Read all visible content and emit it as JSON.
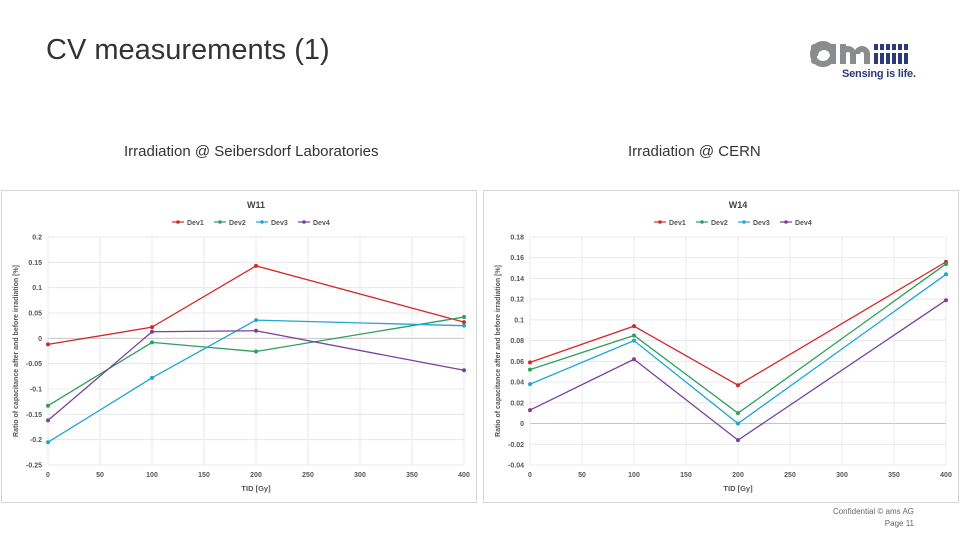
{
  "slide": {
    "title": "CV measurements (1)",
    "left_subtitle": "Irradiation @ Seibersdorf Laboratories",
    "right_subtitle": "Irradiation @ CERN",
    "footer_line1": "Confidential © ams AG",
    "footer_line2": "Page 11"
  },
  "logo": {
    "text": "Sensing is life.",
    "colors": {
      "gray": "#8a8c8e",
      "blue": "#2a3a7a"
    }
  },
  "chart_data": [
    {
      "type": "line",
      "title": "W11",
      "xlabel": "TID [Gy]",
      "ylabel": "Ratio of capacitance after and before irradiation [%]",
      "x": [
        0,
        100,
        200,
        400
      ],
      "xlim": [
        0,
        400
      ],
      "xticks": [
        0,
        50,
        100,
        150,
        200,
        250,
        300,
        350,
        400
      ],
      "ylim": [
        -0.25,
        0.2
      ],
      "yticks": [
        -0.25,
        -0.2,
        -0.15,
        -0.1,
        -0.05,
        0,
        0.05,
        0.1,
        0.15,
        0.2
      ],
      "grid": true,
      "legend": "top",
      "series": [
        {
          "name": "Dev1",
          "color": "#d62728",
          "values": [
            -0.012,
            0.022,
            0.143,
            0.032
          ]
        },
        {
          "name": "Dev2",
          "color": "#2ca05a",
          "values": [
            -0.133,
            -0.008,
            -0.026,
            0.042
          ]
        },
        {
          "name": "Dev3",
          "color": "#1fa6d6",
          "values": [
            -0.205,
            -0.078,
            0.036,
            0.025
          ]
        },
        {
          "name": "Dev4",
          "color": "#7b3f9e",
          "values": [
            -0.162,
            0.013,
            0.015,
            -0.063
          ]
        }
      ]
    },
    {
      "type": "line",
      "title": "W14",
      "xlabel": "TID [Gy]",
      "ylabel": "Ratio of capacitance after and before irradiation [%]",
      "x": [
        0,
        100,
        200,
        400
      ],
      "xlim": [
        0,
        400
      ],
      "xticks": [
        0,
        50,
        100,
        150,
        200,
        250,
        300,
        350,
        400
      ],
      "ylim": [
        -0.04,
        0.18
      ],
      "yticks": [
        -0.04,
        -0.02,
        0,
        0.02,
        0.04,
        0.06,
        0.08,
        0.1,
        0.12,
        0.14,
        0.16,
        0.18
      ],
      "grid": true,
      "legend": "top",
      "series": [
        {
          "name": "Dev1",
          "color": "#d62728",
          "values": [
            0.059,
            0.094,
            0.037,
            0.156
          ]
        },
        {
          "name": "Dev2",
          "color": "#2ca05a",
          "values": [
            0.052,
            0.085,
            0.01,
            0.154
          ]
        },
        {
          "name": "Dev3",
          "color": "#1fa6d6",
          "values": [
            0.038,
            0.08,
            0.0,
            0.144
          ]
        },
        {
          "name": "Dev4",
          "color": "#7b3f9e",
          "values": [
            0.013,
            0.062,
            -0.016,
            0.119
          ]
        }
      ]
    }
  ]
}
